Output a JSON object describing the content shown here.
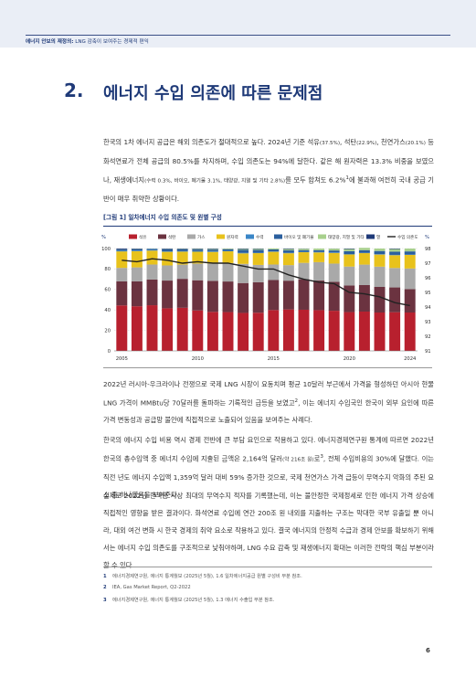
{
  "header": {
    "section": "에너지 안보의 재정의:",
    "subtitle": " LNG 감축이 보여주는 경제적 편익"
  },
  "section": {
    "number": "2.",
    "title": "에너지 수입 의존에 따른 문제점"
  },
  "intro": {
    "p1a": "한국의 1차 에너지 공급은 해외 의존도가 절대적으로 높다. 2024년 기준 석유",
    "p1b": "(37.5%)",
    "p1c": ", 석탄",
    "p1d": "(22.9%)",
    "p1e": ", 천연가스",
    "p1f": "(20.1%)",
    "p1g": " 등 화석연료가 전체 공급의 80.5%를 차지하며, 수입 의존도는 94%에 달한다. 같은 해 원자력은 13.3% 비중을 보였으나, 재생에너지",
    "p1h": "(수력 0.3%, 바이오, 폐기물 3.1%, 태양광, 지열 및 기타 2.8%)",
    "p1i": "를 모두 합쳐도 6.2%",
    "p1j": "1",
    "p1k": "에 불과해 여전히 국내 공급 기반이 매우 취약한 상황이다."
  },
  "figure": {
    "title": "[그림 1] 일차에너지 수입 의존도 및 원별 구성"
  },
  "chart_data": {
    "type": "bar",
    "title": "[그림 1] 일차에너지 수입 의존도 및 원별 구성",
    "xlabel": "",
    "ylabel_left": "%",
    "ylabel_right": "%",
    "ylim_left": [
      0,
      100
    ],
    "ylim_right": [
      91,
      98
    ],
    "yticks_left": [
      "0",
      "20",
      "40",
      "60",
      "80",
      "100"
    ],
    "yticks_right": [
      "91",
      "92",
      "93",
      "94",
      "95",
      "96",
      "97",
      "98"
    ],
    "xticks": [
      "2005",
      "2010",
      "2015",
      "2020",
      "2024"
    ],
    "x": [
      2005,
      2006,
      2007,
      2008,
      2009,
      2010,
      2011,
      2012,
      2013,
      2014,
      2015,
      2016,
      2017,
      2018,
      2019,
      2020,
      2021,
      2022,
      2023,
      2024
    ],
    "legend_position": "top",
    "series": [
      {
        "name": "석유",
        "color": "#b8202e",
        "values": [
          44.4,
          43.6,
          44.6,
          41.6,
          42.1,
          39.5,
          38.1,
          37.9,
          37.1,
          37.3,
          39.9,
          40.5,
          40.2,
          39.8,
          39.2,
          37.9,
          38.4,
          37.5,
          37.8,
          37.5
        ]
      },
      {
        "name": "석탄",
        "color": "#6b3340",
        "values": [
          23.5,
          24.3,
          25.1,
          27.1,
          28.3,
          29.5,
          30.3,
          29.9,
          29.2,
          29.8,
          29.3,
          28.1,
          29.8,
          28.9,
          28.2,
          26.0,
          25.9,
          25.0,
          24.2,
          22.9
        ]
      },
      {
        "name": "가스",
        "color": "#a9a9a9",
        "values": [
          13.2,
          13.7,
          14.7,
          14.8,
          13.9,
          16.3,
          16.8,
          18.0,
          18.7,
          16.9,
          15.2,
          15.2,
          16.0,
          18.0,
          17.9,
          18.5,
          20.0,
          19.8,
          19.0,
          20.1
        ]
      },
      {
        "name": "원자력",
        "color": "#e8c21c",
        "values": [
          16.1,
          15.8,
          13.6,
          13.3,
          12.7,
          11.6,
          11.5,
          11.5,
          10.3,
          11.5,
          12.4,
          11.6,
          10.4,
          9.5,
          10.4,
          11.8,
          11.2,
          11.8,
          12.5,
          13.3
        ]
      },
      {
        "name": "수력",
        "color": "#3a86c7",
        "values": [
          0.6,
          0.6,
          0.5,
          0.4,
          0.4,
          0.5,
          0.5,
          0.5,
          0.5,
          0.4,
          0.3,
          0.4,
          0.4,
          0.4,
          0.4,
          0.4,
          0.3,
          0.3,
          0.3,
          0.3
        ]
      },
      {
        "name": "바이오 및 폐기물",
        "color": "#2b5f9e",
        "values": [
          1.2,
          1.3,
          1.3,
          2.1,
          1.8,
          1.6,
          1.7,
          1.3,
          2.9,
          2.7,
          2.0,
          2.5,
          1.6,
          1.8,
          2.0,
          2.8,
          2.6,
          3.2,
          3.1,
          3.1
        ]
      },
      {
        "name": "태양광, 지열 및 기타",
        "color": "#a8d08d",
        "values": [
          0.2,
          0.2,
          0.2,
          0.2,
          0.3,
          0.5,
          0.6,
          0.7,
          0.8,
          1.0,
          1.0,
          1.2,
          1.4,
          1.6,
          1.8,
          2.1,
          2.3,
          2.4,
          2.6,
          2.8
        ]
      },
      {
        "name": "열",
        "color": "#1f3a78",
        "values": [
          0.8,
          0.5,
          0.0,
          0.5,
          0.5,
          0.5,
          0.5,
          0.2,
          0.5,
          0.4,
          0.0,
          0.5,
          0.2,
          0.0,
          0.1,
          0.5,
          0.0,
          0.0,
          0.5,
          0.0
        ]
      },
      {
        "name": "수입 의존도",
        "color": "#222222",
        "type": "line",
        "axis": "right",
        "values": [
          97.2,
          97.1,
          97.3,
          97.2,
          97.0,
          97.1,
          97.0,
          97.0,
          96.8,
          96.6,
          96.6,
          96.2,
          95.9,
          95.7,
          95.6,
          95.0,
          94.9,
          94.7,
          94.3,
          94.1
        ]
      }
    ]
  },
  "body": {
    "p2a": "2022년 러시아-우크라이나 전쟁으로 국제 LNG 시장이 요동치며 평균 10달러 부근에서 가격을 형성하던 아시아 현물 LNG 가격이 MMBtu당 70달러를 돌파하는 기록적인 급등을 보였고",
    "p2b": "2",
    "p2c": ", 이는 에너지 수입국인 한국이 외부 요인에 따른 가격 변동성과 공급망 불안에 직접적으로 노출되어 있음을 보여주는 사례다.",
    "p3a": "한국의 에너지 수입 비용 역시 경제 전반에 큰 부담 요인으로 작용하고 있다. 에너지경제연구원 통계에 따르면 2022년 한국의 총수입액 중 에너지 수입에 지출된 금액은 2,164억 달러",
    "p3b": "(약 216조 원)",
    "p3c": "로",
    "p3d": "3",
    "p3e": ", 전체 수입비용의 30%에 달했다. 이는 직전 년도 에너지 수입액 1,359억 달러 대비 59% 증가한 것으로, 국제 천연가스 가격 급등이 무역수지 악화의 주된 요소 중 하나였음을 보여준다.",
    "p4": "실제로 2022년 한국은 사상 최대의 무역수지 적자를 기록했는데, 이는 불안정한 국제정세로 인한 에너지 가격 상승에 직접적인 영향을 받은 결과이다. 화석연료 수입에 연간 200조 원 내외를 지출하는 구조는 막대한 국부 유출일 뿐 아니라, 대외 여건 변화 시 한국 경제의 취약 요소로 작용하고 있다. 결국 에너지의 안정적 수급과 경제 안보를 확보하기 위해서는 에너지 수입 의존도를 구조적으로 낮춰야하며, LNG 수요 감축 및 재생에너지 확대는 이러한 전략의 핵심 부분이라 할 수 있다."
  },
  "footnotes": [
    {
      "num": "1",
      "text": "에너지경제연구원, 에너지 통계월보 (2025년 5월), 1.6 일차에너지공급 원별 구성비 부분 참조."
    },
    {
      "num": "2",
      "text": "IEA, Gas Market Report, Q2-2022"
    },
    {
      "num": "3",
      "text": "에너지경제연구원, 에너지 통계월보 (2025년 5월), 1.3 에너지 수출입 부분 참조."
    }
  ],
  "page": {
    "number": "6"
  }
}
